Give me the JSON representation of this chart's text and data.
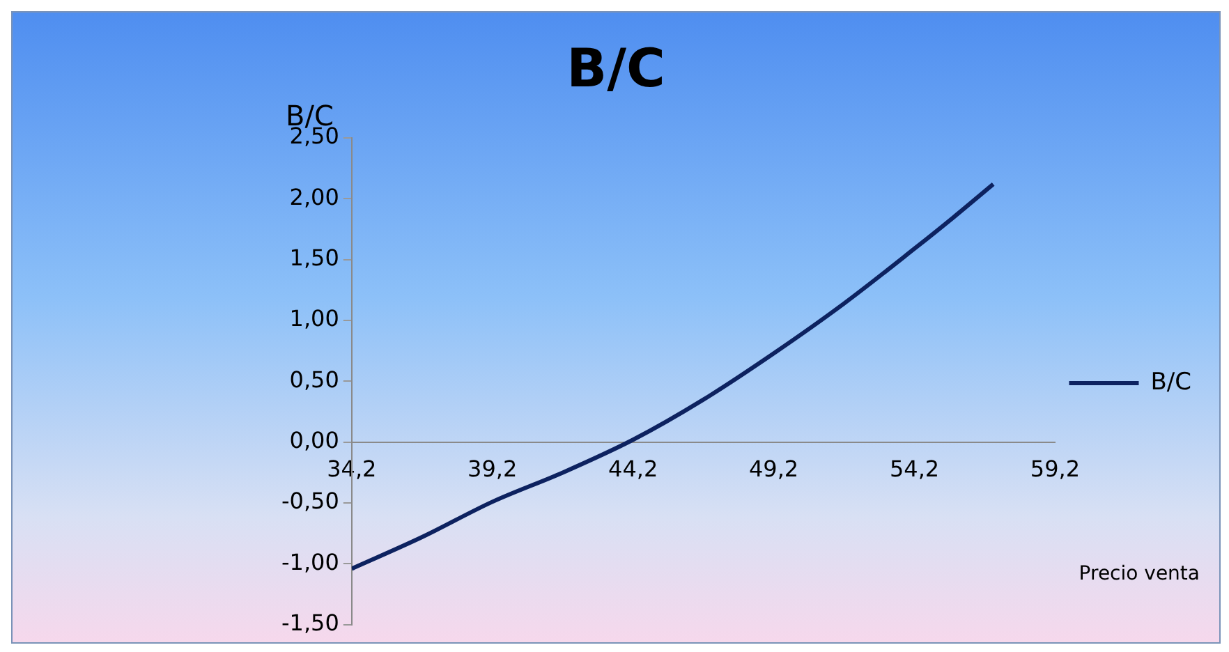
{
  "chart_data": {
    "type": "line",
    "title": "B/C",
    "ylabel": "B/C",
    "xlabel": "Precio venta",
    "x": [
      34.2,
      36.7,
      39.2,
      41.7,
      44.2,
      46.7,
      49.2,
      51.7,
      54.2,
      55.6,
      57.0
    ],
    "series": [
      {
        "name": "B/C",
        "color": "#0d2260",
        "values": [
          -1.04,
          -0.78,
          -0.49,
          -0.25,
          0.02,
          0.35,
          0.73,
          1.14,
          1.59,
          1.85,
          2.12
        ]
      }
    ],
    "xlim": [
      34.2,
      59.2
    ],
    "xticks": [
      {
        "value": 34.2,
        "label": "34,2"
      },
      {
        "value": 39.2,
        "label": "39,2"
      },
      {
        "value": 44.2,
        "label": "44,2"
      },
      {
        "value": 49.2,
        "label": "49,2"
      },
      {
        "value": 54.2,
        "label": "54,2"
      },
      {
        "value": 59.2,
        "label": "59,2"
      }
    ],
    "ylim": [
      -1.5,
      2.5
    ],
    "yticks": [
      {
        "value": -1.5,
        "label": "-1,50"
      },
      {
        "value": -1,
        "label": "-1,00"
      },
      {
        "value": -0.5,
        "label": "-0,50"
      },
      {
        "value": 0,
        "label": "0,00"
      },
      {
        "value": 0.5,
        "label": "0,50"
      },
      {
        "value": 1,
        "label": "1,00"
      },
      {
        "value": 1.5,
        "label": "1,50"
      },
      {
        "value": 2,
        "label": "2,00"
      },
      {
        "value": 2.5,
        "label": "2,50"
      }
    ],
    "grid": false,
    "legend": "right",
    "marker": "none",
    "line_style": "solid"
  }
}
